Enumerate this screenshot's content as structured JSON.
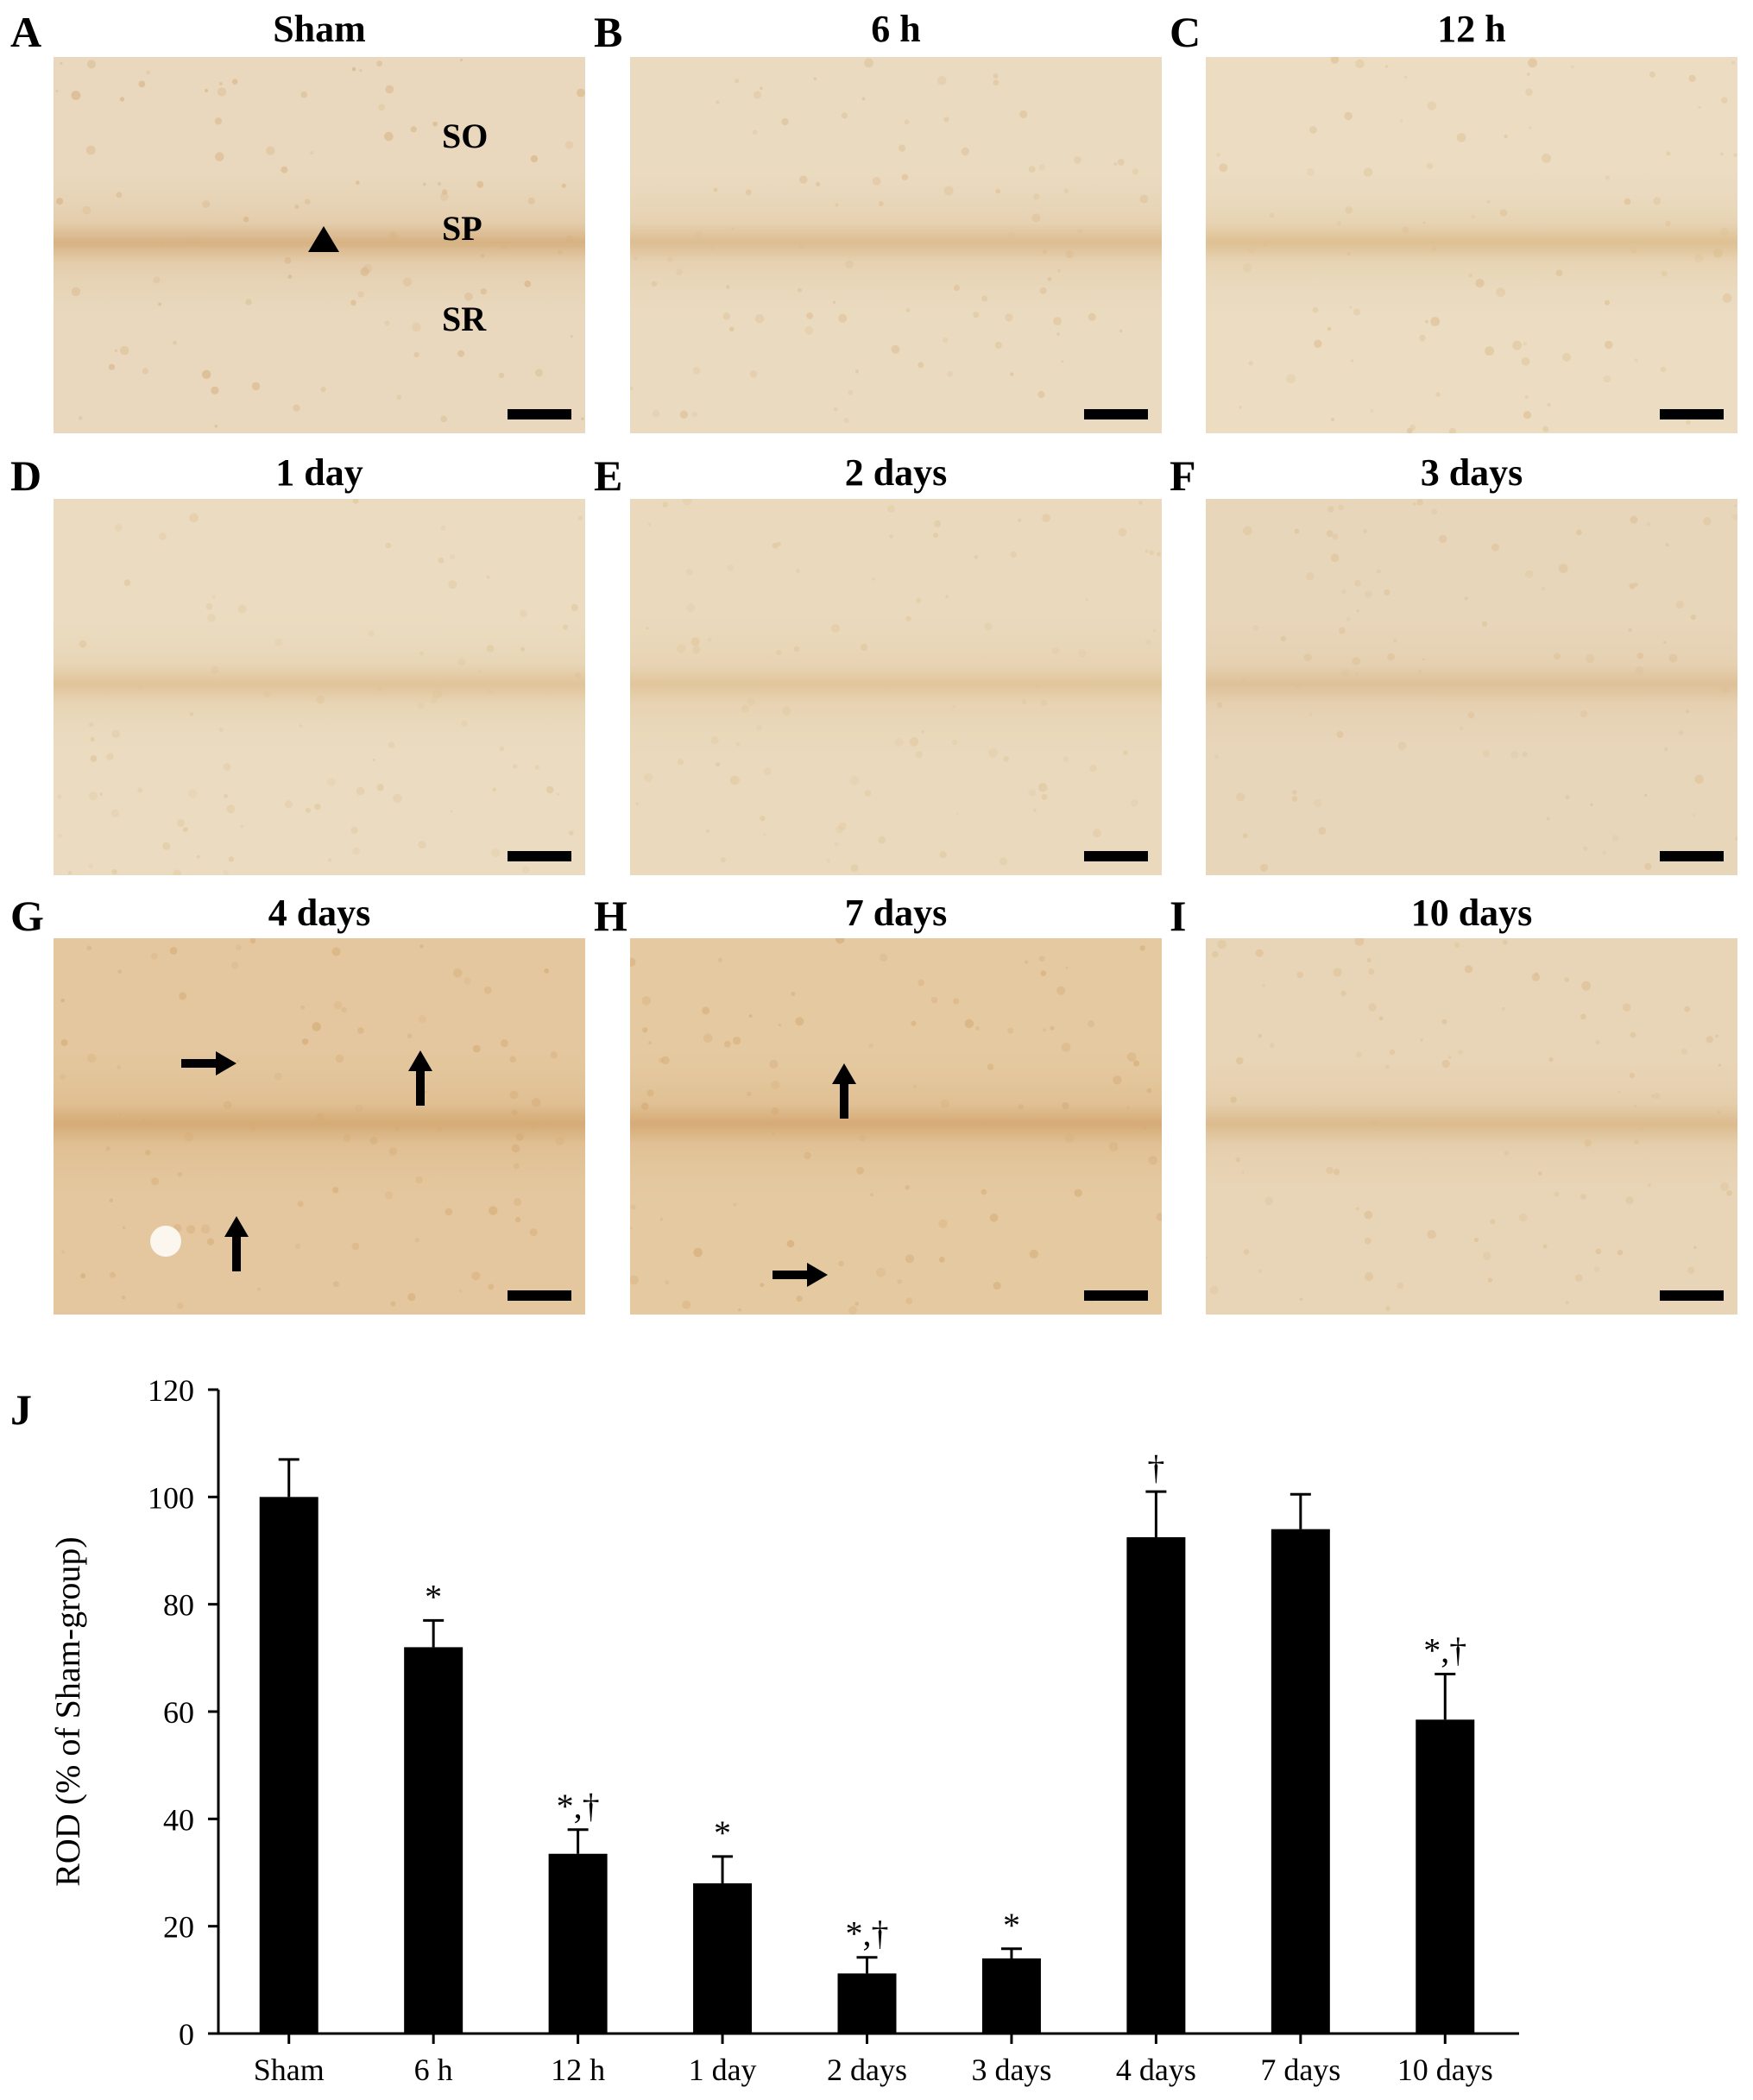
{
  "panels": [
    {
      "letter": "A",
      "title": "Sham",
      "band": "#d7b283",
      "bg": "#e9d8bd",
      "layers": [
        "SO",
        "SP",
        "SR"
      ],
      "arrows": [],
      "arrowhead": true
    },
    {
      "letter": "B",
      "title": "6 h",
      "band": "#ddbd92",
      "bg": "#eadabf",
      "layers": [],
      "arrows": []
    },
    {
      "letter": "C",
      "title": "12 h",
      "band": "#dec093",
      "bg": "#ebdcc2",
      "layers": [],
      "arrows": []
    },
    {
      "letter": "D",
      "title": "1 day",
      "band": "#e0c49a",
      "bg": "#ebdcc1",
      "layers": [],
      "arrows": []
    },
    {
      "letter": "E",
      "title": "2 days",
      "band": "#e1c69c",
      "bg": "#ead9bd",
      "layers": [],
      "arrows": []
    },
    {
      "letter": "F",
      "title": "3 days",
      "band": "#dec198",
      "bg": "#e8d6bb",
      "layers": [],
      "arrows": []
    },
    {
      "letter": "G",
      "title": "4 days",
      "band": "#d5ab76",
      "bg": "#e4c79e",
      "layers": [],
      "arrows": [
        "right",
        "up",
        "up"
      ]
    },
    {
      "letter": "H",
      "title": "7 days",
      "band": "#d5ab77",
      "bg": "#e5c9a0",
      "layers": [],
      "arrows": [
        "up",
        "right"
      ]
    },
    {
      "letter": "I",
      "title": "10 days",
      "band": "#dcbb8e",
      "bg": "#e8d5b7",
      "layers": [],
      "arrows": []
    }
  ],
  "chart_label": "J",
  "chart_data": {
    "type": "bar",
    "categories": [
      "Sham",
      "6 h",
      "12 h",
      "1 day",
      "2 days",
      "3 days",
      "4 days",
      "7 days",
      "10 days"
    ],
    "values": [
      100,
      72,
      33.5,
      28,
      11.2,
      14,
      92.5,
      94,
      58.5
    ],
    "errors": [
      7,
      5,
      4.5,
      5,
      3,
      1.8,
      8.5,
      6.5,
      8.5
    ],
    "annotations": [
      "",
      "*",
      "*,†",
      "*",
      "*,†",
      "*",
      "†",
      "",
      "*,†"
    ],
    "ylabel": "ROD (% of  Sham-group)",
    "ylim": [
      0,
      120
    ],
    "yticks": [
      0,
      20,
      40,
      60,
      80,
      100,
      120
    ],
    "bar_color": "#000000"
  }
}
